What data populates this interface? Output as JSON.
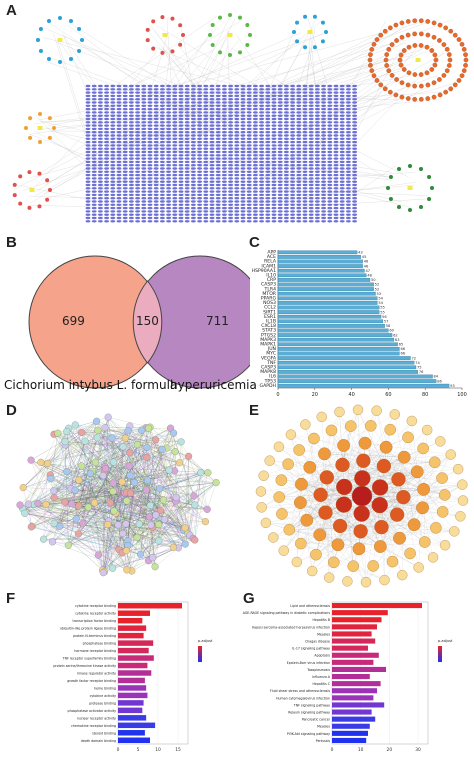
{
  "panels": {
    "a": "A",
    "b": "B",
    "c": "C",
    "d": "D",
    "e": "E",
    "f": "F",
    "g": "G"
  },
  "venn": {
    "left_label": "Cichorium intybus L. formula",
    "right_label": "hyperuricemia",
    "left_only": "699",
    "overlap": "150",
    "right_only": "711",
    "left_color": "#f5a38a",
    "right_color": "#b787c1"
  },
  "chart_data": [
    {
      "type": "bar",
      "orientation": "horizontal",
      "categories": [
        "APP",
        "ACE",
        "RELA",
        "ICAM1",
        "HSP90AA1",
        "IL10",
        "CRP",
        "CASP3",
        "TLR4",
        "MTOR",
        "PPARG",
        "NOS3",
        "CCL2",
        "SIRT1",
        "ESR1",
        "IL1B",
        "CXCL8",
        "STAT3",
        "PTGS2",
        "MAPK3",
        "MAPK1",
        "JUN",
        "MYC",
        "VEGFA",
        "TNF",
        "CASP3",
        "MAPK8",
        "IL6",
        "TP53",
        "GAPDH"
      ],
      "values": [
        43,
        45,
        46,
        46,
        47,
        48,
        50,
        52,
        52,
        53,
        54,
        54,
        55,
        55,
        56,
        57,
        58,
        60,
        62,
        63,
        65,
        66,
        66,
        72,
        74,
        75,
        76,
        84,
        86,
        93
      ],
      "xlim": [
        0,
        100
      ],
      "xticks": [
        "0",
        "20",
        "40",
        "60",
        "80",
        "100"
      ],
      "bar_color": "#5aaed6"
    },
    {
      "type": "bar",
      "orientation": "horizontal",
      "categories": [
        "cytokine receptor binding",
        "cytokine receptor activity",
        "transcription factor binding",
        "ubiquitin-like protein ligase binding",
        "protein N-terminus binding",
        "phosphatase binding",
        "hormone receptor binding",
        "TNF receptor superfamily binding",
        "protein serine/threonine kinase activity",
        "kinase regulator activity",
        "growth factor receptor binding",
        "heme binding",
        "cytokine activity",
        "protease binding",
        "phosphatase activator activity",
        "nuclear receptor activity",
        "chemokine receptor binding",
        "steroid binding",
        "death domain binding"
      ],
      "values": [
        100,
        50,
        38,
        44,
        40,
        55,
        48,
        56,
        46,
        52,
        42,
        44,
        46,
        40,
        38,
        44,
        58,
        42,
        50
      ],
      "xticks": [
        "0",
        "5",
        "10",
        "15"
      ],
      "legend_title": "p.adjust"
    },
    {
      "type": "bar",
      "orientation": "horizontal",
      "categories": [
        "Lipid and atherosclerosis",
        "AGE-RAGE signaling pathway in diabetic complications",
        "Hepatitis B",
        "Kaposi sarcoma-associated herpesvirus infection",
        "Measles",
        "Chagas disease",
        "IL-17 signaling pathway",
        "Apoptosis",
        "Epstein-Barr virus infection",
        "Toxoplasmosis",
        "Influenza A",
        "Hepatitis C",
        "Fluid shear stress and atherosclerosis",
        "Human cytomegalovirus infection",
        "TNF signaling pathway",
        "Relaxin signaling pathway",
        "Pancreatic cancer",
        "Measles",
        "PI3K-Akt signaling pathway",
        "Pertussis"
      ],
      "values": [
        100,
        62,
        55,
        50,
        44,
        48,
        40,
        52,
        46,
        60,
        42,
        54,
        50,
        46,
        58,
        44,
        48,
        42,
        40,
        38
      ],
      "xticks": [
        "0",
        "10",
        "20",
        "30"
      ],
      "legend_title": "p.adjust"
    }
  ]
}
